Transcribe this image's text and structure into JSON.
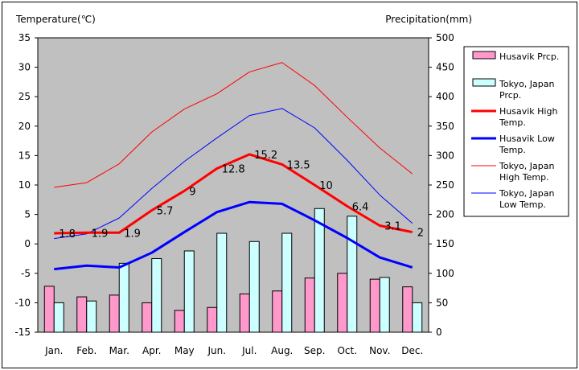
{
  "chart_data": {
    "type": "bar+line",
    "categories": [
      "Jan.",
      "Feb.",
      "Mar.",
      "Apr.",
      "May",
      "Jun.",
      "Jul.",
      "Aug.",
      "Sep.",
      "Oct.",
      "Nov.",
      "Dec."
    ],
    "left_axis": {
      "label": "Temperature(℃)",
      "min": -15,
      "max": 35,
      "step": 5
    },
    "right_axis": {
      "label": "Precipitation(mm)",
      "min": 0,
      "max": 500,
      "step": 50
    },
    "grid": false,
    "legend_position": "right",
    "bar_series": [
      {
        "name": "Husavik Prcp.",
        "color": "#ff99cc",
        "values": [
          78,
          60,
          63,
          50,
          37,
          42,
          65,
          70,
          92,
          100,
          90,
          77
        ]
      },
      {
        "name": "Tokyo, Japan Prcp.",
        "color": "#ccffff",
        "values": [
          50,
          53,
          117,
          125,
          138,
          168,
          154,
          168,
          210,
          197,
          93,
          50
        ]
      }
    ],
    "line_series": [
      {
        "name": "Husavik High Temp.",
        "color": "#ff0000",
        "width": 3,
        "values": [
          1.8,
          1.9,
          1.9,
          5.7,
          9,
          12.8,
          15.2,
          13.5,
          10,
          6.4,
          3.1,
          2
        ],
        "labels": [
          "1.8",
          "1.9",
          "1.9",
          "5.7",
          "9",
          "12.8",
          "15.2",
          "13.5",
          "10",
          "6.4",
          "3.1",
          "2"
        ]
      },
      {
        "name": "Husavik Low Temp.",
        "color": "#0000ff",
        "width": 3,
        "values": [
          -4.3,
          -3.7,
          -4.0,
          -1.5,
          2.0,
          5.4,
          7.1,
          6.8,
          4.0,
          1.0,
          -2.3,
          -4.0
        ]
      },
      {
        "name": "Tokyo, Japan High Temp.",
        "color": "#ff0000",
        "width": 1,
        "values": [
          9.6,
          10.4,
          13.6,
          19.0,
          22.9,
          25.5,
          29.2,
          30.8,
          26.9,
          21.5,
          16.3,
          11.9
        ]
      },
      {
        "name": "Tokyo, Japan Low Temp.",
        "color": "#0000ff",
        "width": 1,
        "values": [
          0.9,
          1.7,
          4.4,
          9.4,
          14.0,
          18.0,
          21.8,
          23.0,
          19.7,
          14.2,
          8.3,
          3.5
        ]
      }
    ],
    "legend_lines": [
      [
        "Husavik Prcp."
      ],
      [
        "Tokyo, Japan",
        "Prcp."
      ],
      [
        "Husavik High",
        "Temp."
      ],
      [
        "Husavik Low",
        "Temp."
      ],
      [
        "Tokyo, Japan",
        "High Temp."
      ],
      [
        "Tokyo, Japan",
        "Low Temp."
      ]
    ]
  }
}
